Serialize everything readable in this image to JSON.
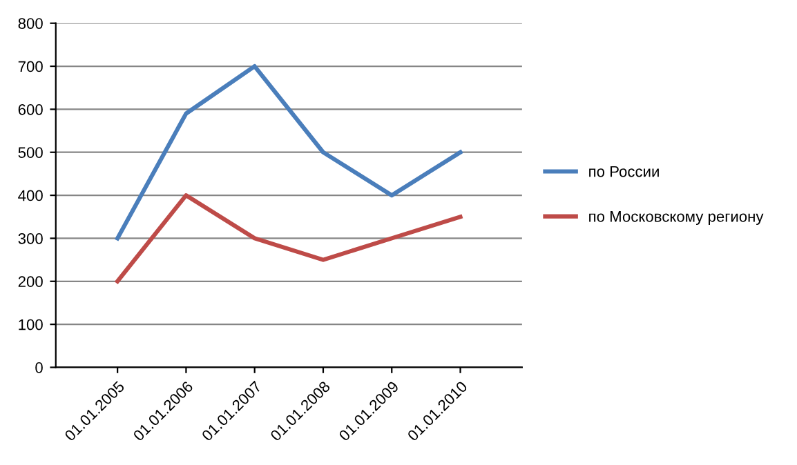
{
  "chart_data": {
    "type": "line",
    "categories": [
      "01.01.2005",
      "01.01.2006",
      "01.01.2007",
      "01.01.2008",
      "01.01.2009",
      "01.01.2010"
    ],
    "series": [
      {
        "name": "по России",
        "color": "#4a7ebb",
        "values": [
          300,
          590,
          700,
          500,
          400,
          500
        ]
      },
      {
        "name": "по Московскому региону",
        "color": "#be4b48",
        "values": [
          200,
          400,
          300,
          250,
          300,
          350
        ]
      }
    ],
    "ylim": [
      0,
      800
    ],
    "yticks": [
      0,
      100,
      200,
      300,
      400,
      500,
      600,
      700,
      800
    ],
    "grid": "y",
    "legend": "right",
    "marker": "none",
    "line_style": "solid"
  }
}
